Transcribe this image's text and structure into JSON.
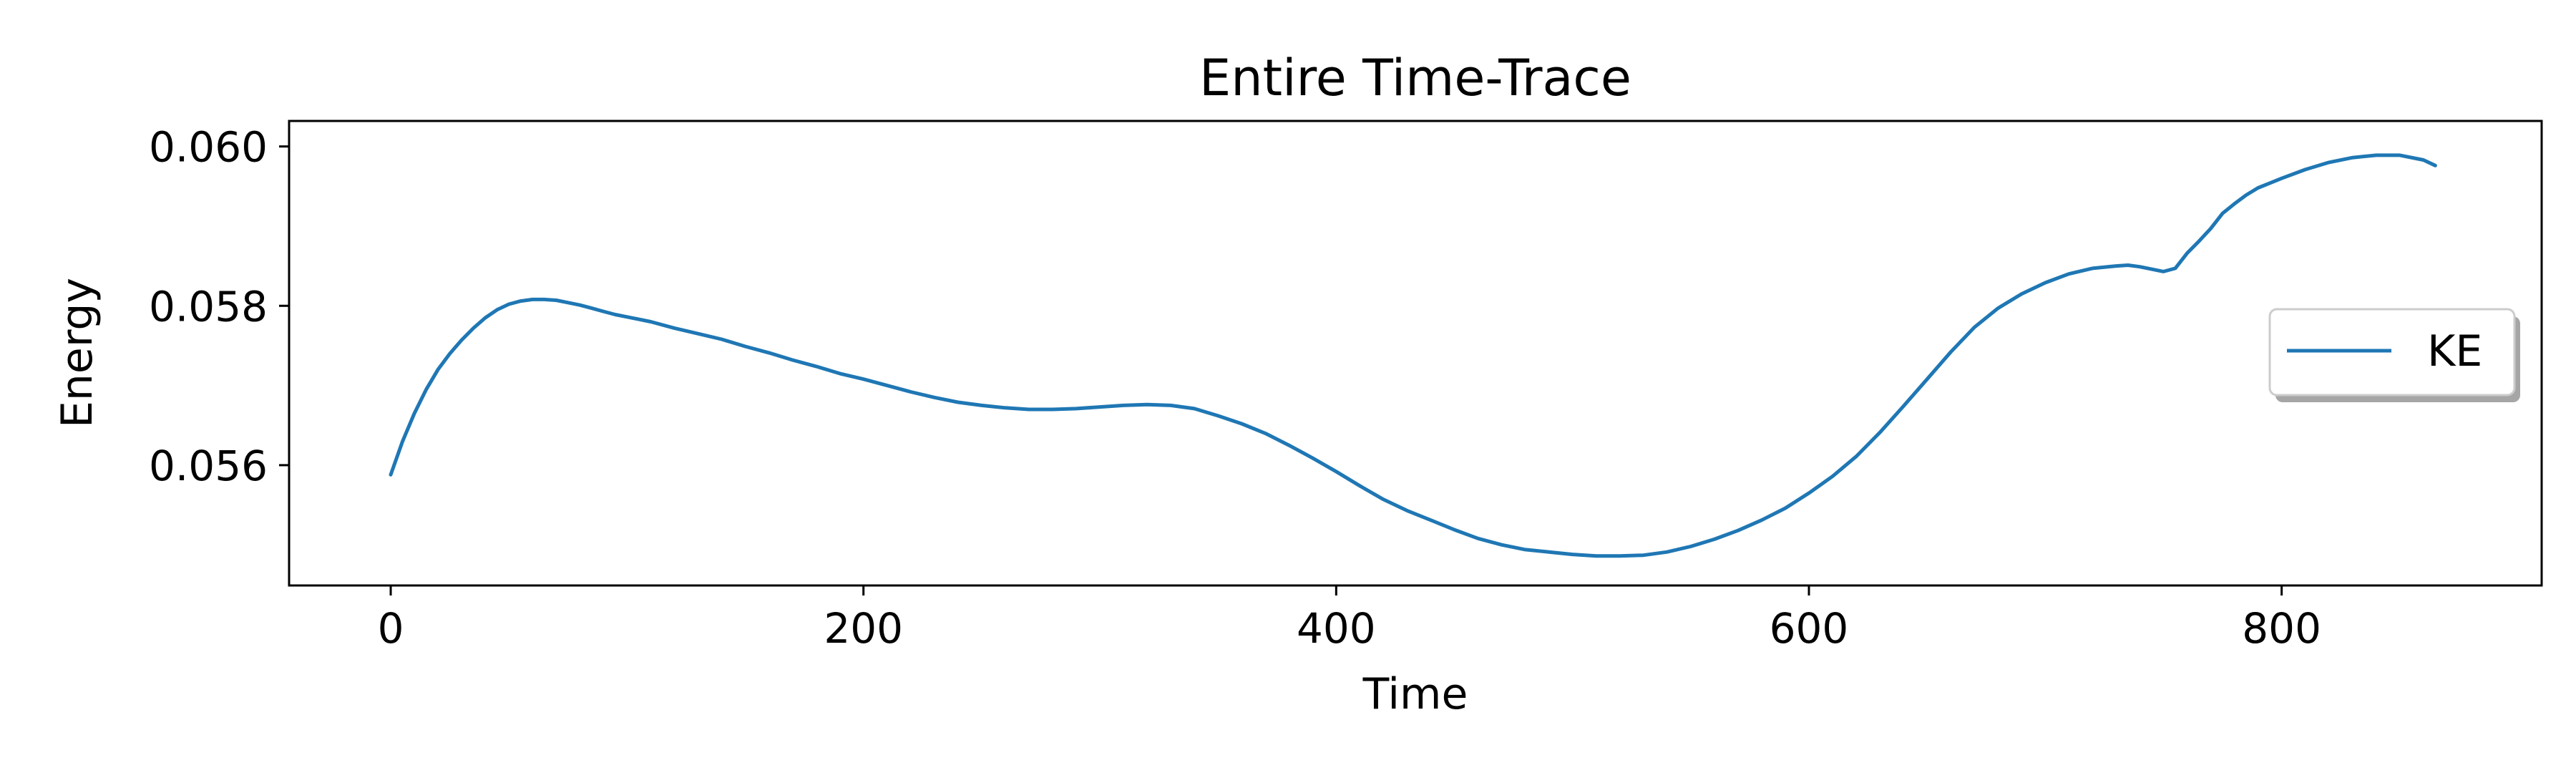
{
  "chart_data": {
    "type": "line",
    "title": "Entire Time-Trace",
    "xlabel": "Time",
    "ylabel": "Energy",
    "xlim": [
      -43,
      910
    ],
    "ylim": [
      0.05449,
      0.06032
    ],
    "xticks": [
      0,
      200,
      400,
      600,
      800
    ],
    "xtick_labels": [
      "0",
      "200",
      "400",
      "600",
      "800"
    ],
    "yticks": [
      0.056,
      0.058,
      0.06
    ],
    "ytick_labels": [
      "0.056",
      "0.058",
      "0.060"
    ],
    "grid": false,
    "legend_position": "center-right",
    "series": [
      {
        "name": "KE",
        "color": "#1f77b4",
        "x": [
          0,
          5,
          10,
          15,
          20,
          25,
          30,
          35,
          40,
          45,
          50,
          55,
          60,
          65,
          70,
          75,
          80,
          85,
          90,
          95,
          100,
          110,
          120,
          130,
          140,
          150,
          160,
          170,
          180,
          190,
          200,
          210,
          220,
          230,
          240,
          250,
          260,
          270,
          280,
          290,
          300,
          310,
          320,
          330,
          340,
          350,
          360,
          370,
          380,
          390,
          400,
          410,
          420,
          430,
          440,
          450,
          460,
          470,
          480,
          490,
          500,
          510,
          520,
          530,
          540,
          550,
          560,
          570,
          580,
          590,
          600,
          610,
          620,
          630,
          640,
          650,
          660,
          670,
          680,
          690,
          700,
          710,
          720,
          730,
          735,
          740,
          745,
          750,
          755,
          760,
          765,
          770,
          775,
          780,
          785,
          790,
          800,
          810,
          820,
          830,
          840,
          850,
          860,
          865
        ],
        "y": [
          0.05588,
          0.0563,
          0.05665,
          0.05695,
          0.0572,
          0.0574,
          0.05757,
          0.05772,
          0.05785,
          0.05795,
          0.05802,
          0.05806,
          0.05808,
          0.05808,
          0.05807,
          0.05804,
          0.05801,
          0.05797,
          0.05793,
          0.05789,
          0.05786,
          0.0578,
          0.05772,
          0.05765,
          0.05758,
          0.05749,
          0.05741,
          0.05732,
          0.05724,
          0.05715,
          0.05708,
          0.057,
          0.05692,
          0.05685,
          0.05679,
          0.05675,
          0.05672,
          0.0567,
          0.0567,
          0.05671,
          0.05673,
          0.05675,
          0.05676,
          0.05675,
          0.05671,
          0.05662,
          0.05652,
          0.0564,
          0.05625,
          0.05609,
          0.05592,
          0.05574,
          0.05557,
          0.05543,
          0.05531,
          0.05519,
          0.05508,
          0.055,
          0.05494,
          0.05491,
          0.05488,
          0.05486,
          0.05486,
          0.05487,
          0.05491,
          0.05498,
          0.05507,
          0.05518,
          0.05531,
          0.05546,
          0.05565,
          0.05586,
          0.05611,
          0.05641,
          0.05674,
          0.05708,
          0.05742,
          0.05773,
          0.05797,
          0.05815,
          0.05829,
          0.0584,
          0.05847,
          0.0585,
          0.05851,
          0.05849,
          0.05846,
          0.05843,
          0.05847,
          0.05866,
          0.05881,
          0.05897,
          0.05916,
          0.05928,
          0.05939,
          0.05948,
          0.0596,
          0.05971,
          0.0598,
          0.05986,
          0.05989,
          0.05989,
          0.05983,
          0.05976
        ]
      }
    ]
  }
}
